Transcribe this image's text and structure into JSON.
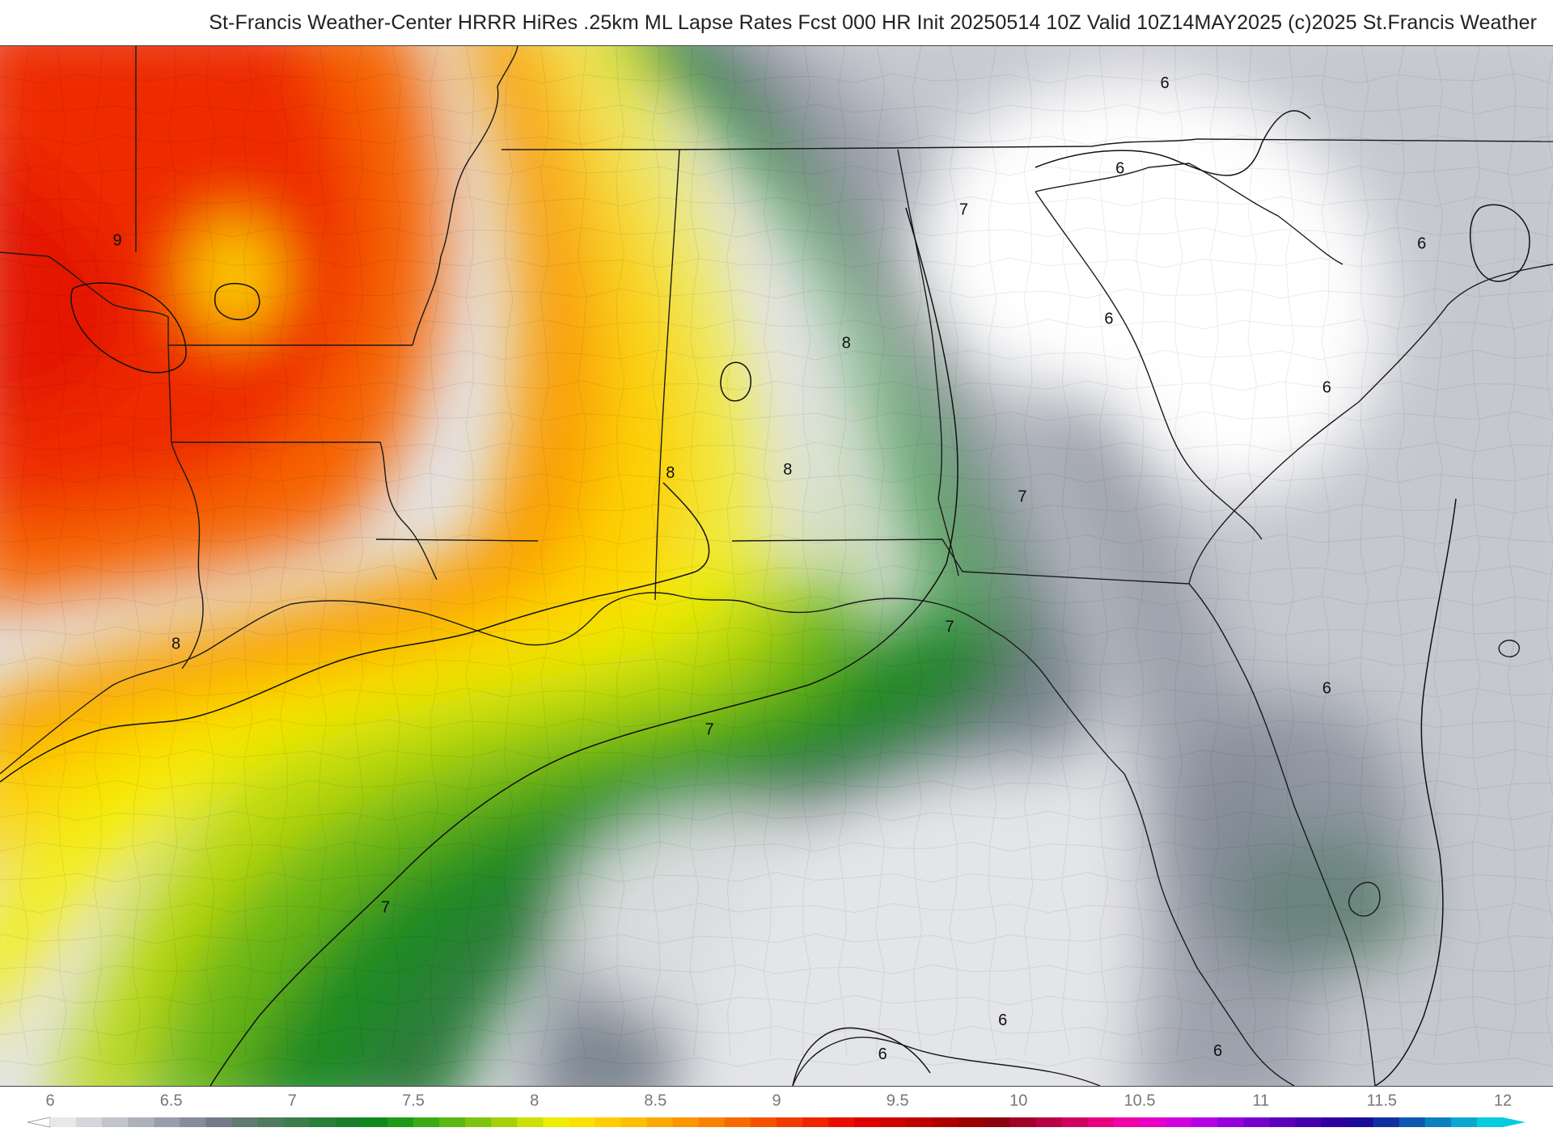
{
  "header": {
    "title": "St-Francis Weather-Center HRRR HiRes .25km ML Lapse Rates   Fcst 000 HR Init 20250514 10Z   Valid 10Z14MAY2025     (c)2025 St.Francis Weather"
  },
  "contour_labels": [
    {
      "text": "9",
      "lon": -98.9,
      "lat": 34.35
    },
    {
      "text": "8",
      "lon": -85.85,
      "lat": 32.85
    },
    {
      "text": "8",
      "lon": -89.0,
      "lat": 30.95
    },
    {
      "text": "8",
      "lon": -86.9,
      "lat": 31.0
    },
    {
      "text": "8",
      "lon": -97.85,
      "lat": 28.45
    },
    {
      "text": "7",
      "lon": -83.75,
      "lat": 34.8
    },
    {
      "text": "7",
      "lon": -82.7,
      "lat": 30.6
    },
    {
      "text": "7",
      "lon": -84.0,
      "lat": 28.7
    },
    {
      "text": "7",
      "lon": -88.3,
      "lat": 27.2
    },
    {
      "text": "7",
      "lon": -94.1,
      "lat": 24.6
    },
    {
      "text": "6",
      "lon": -80.15,
      "lat": 36.65
    },
    {
      "text": "6",
      "lon": -80.95,
      "lat": 35.4
    },
    {
      "text": "6",
      "lon": -81.15,
      "lat": 33.2
    },
    {
      "text": "6",
      "lon": -75.55,
      "lat": 34.3
    },
    {
      "text": "6",
      "lon": -77.25,
      "lat": 32.2
    },
    {
      "text": "6",
      "lon": -77.25,
      "lat": 27.8
    },
    {
      "text": "6",
      "lon": -83.05,
      "lat": 22.95
    },
    {
      "text": "6",
      "lon": -85.2,
      "lat": 22.45
    },
    {
      "text": "6",
      "lon": -79.2,
      "lat": 22.5
    }
  ],
  "colorbar": {
    "ticks": [
      "6",
      "6.5",
      "7",
      "7.5",
      "8",
      "8.5",
      "9",
      "9.5",
      "10",
      "10.5",
      "11",
      "11.5",
      "12"
    ],
    "colors": [
      "#e8e8ea",
      "#d5d6db",
      "#c2c4cc",
      "#aeb1bb",
      "#9a9eaa",
      "#868c98",
      "#737b87",
      "#637a71",
      "#4e7b5d",
      "#3b7d4b",
      "#2a7f3a",
      "#1a7f2b",
      "#0e8a1d",
      "#1f9a18",
      "#3aab14",
      "#5ab810",
      "#7fc40c",
      "#a6d008",
      "#cde004",
      "#eeee00",
      "#fbe100",
      "#fdcf00",
      "#fdbd00",
      "#fca900",
      "#fb9500",
      "#f98100",
      "#f76a00",
      "#f55200",
      "#f23b00",
      "#ef2400",
      "#e80f00",
      "#de0000",
      "#cf0000",
      "#bf0000",
      "#ae0000",
      "#9c0000",
      "#8c0010",
      "#a0002a",
      "#b80045",
      "#d00060",
      "#e60080",
      "#f000a8",
      "#e800c8",
      "#d200dc",
      "#b400e4",
      "#9600dc",
      "#7800cc",
      "#5c00bc",
      "#4400ac",
      "#2e00a0",
      "#1c0a98",
      "#1030a0",
      "#0d58b0",
      "#0a80c0",
      "#08a8d0",
      "#06cce0"
    ]
  },
  "map": {
    "extent": {
      "lon_min": -101.0,
      "lon_max": -73.2,
      "lat_min": 22.0,
      "lat_max": 37.2
    },
    "colors": {
      "white": "#ffffff",
      "gray_light": "#e4e5e8",
      "gray_mid": "#c6c8cf",
      "gray_dark": "#9ea2ad",
      "slate": "#7c8591",
      "green_dark": "#2e7a3d",
      "green": "#1b8a23",
      "green_light": "#67b512",
      "yellow_green": "#b9d807",
      "yellow": "#f4ef00",
      "gold": "#fdd200",
      "orange": "#fa9c00",
      "orange_red": "#f66400",
      "red": "#ee2a00",
      "deep_red": "#e41200"
    }
  }
}
